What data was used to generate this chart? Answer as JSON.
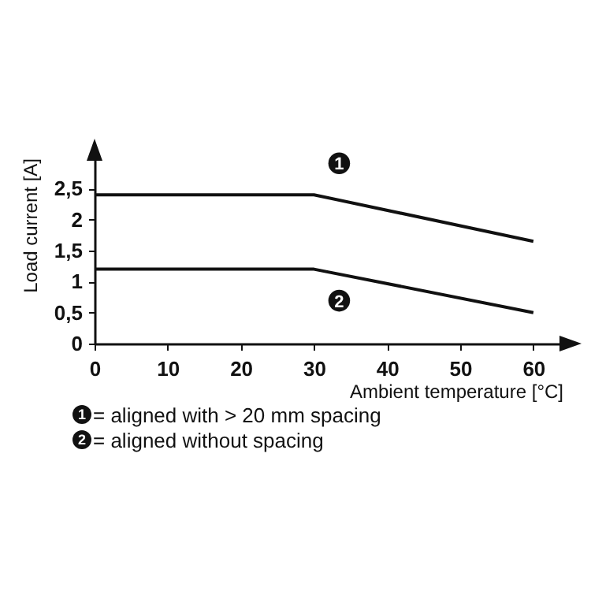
{
  "chart_data": {
    "type": "line",
    "xlabel": "Ambient temperature [°C]",
    "ylabel": "Load current [A]",
    "x": [
      0,
      30,
      60
    ],
    "series": [
      {
        "name": "1",
        "color": "#111111",
        "values": [
          2.4,
          2.4,
          1.65
        ]
      },
      {
        "name": "2",
        "color": "#111111",
        "values": [
          1.2,
          1.2,
          0.5
        ]
      }
    ],
    "xlim": [
      0,
      64
    ],
    "ylim": [
      0,
      3
    ],
    "xticks": [
      0,
      10,
      20,
      30,
      40,
      50,
      60
    ],
    "yticks": [
      0,
      {
        "value": 0.5,
        "label": "0,5"
      },
      1,
      {
        "value": 1.5,
        "label": "1,5"
      },
      2,
      {
        "value": 2.5,
        "label": "2,5"
      }
    ],
    "annotations": [
      "= aligned with > 20 mm spacing",
      "= aligned without spacing"
    ],
    "grid": false,
    "marker": "none",
    "line_style": "solid"
  }
}
